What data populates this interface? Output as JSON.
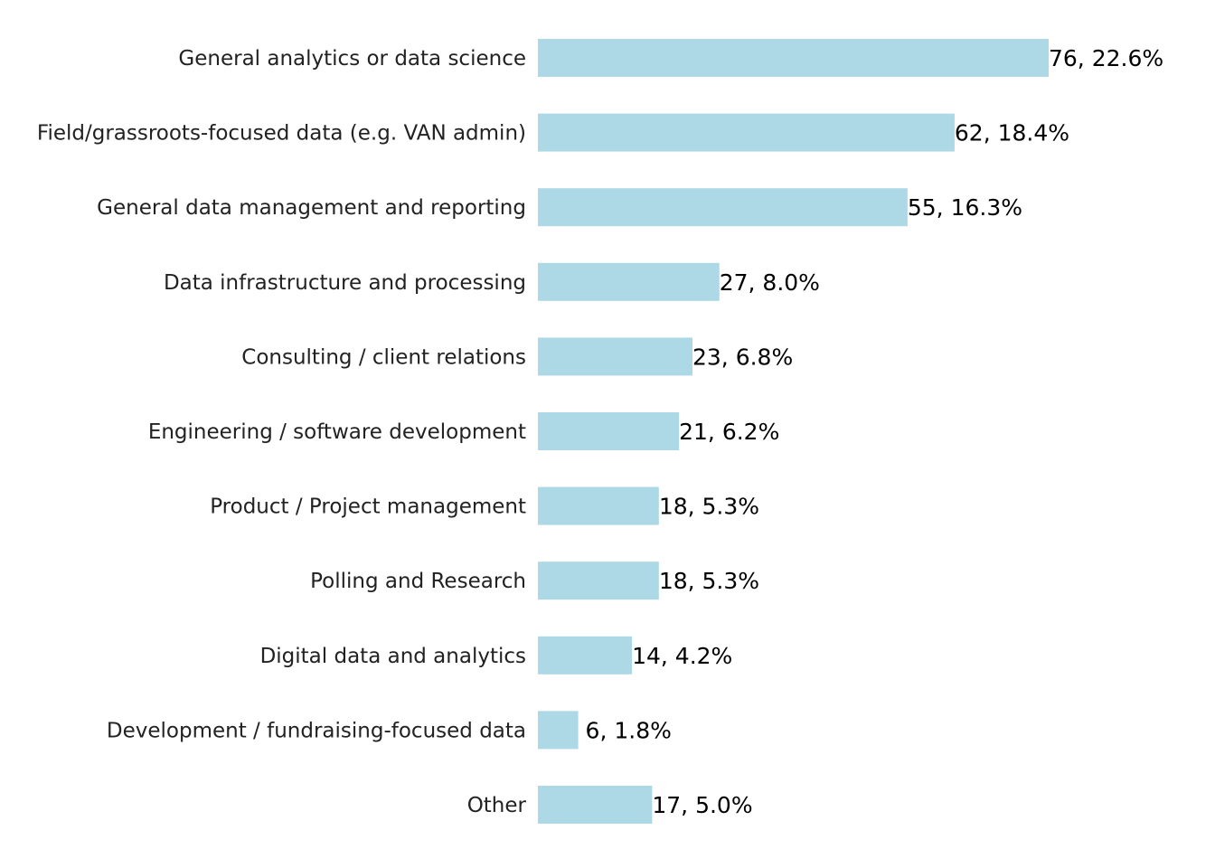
{
  "chart_data": {
    "type": "bar",
    "orientation": "horizontal",
    "categories": [
      "General analytics or data science",
      "Field/grassroots-focused data (e.g. VAN admin)",
      "General data management and reporting",
      "Data infrastructure and processing",
      "Consulting / client relations",
      "Engineering / software development",
      "Product / Project management",
      "Polling and Research",
      "Digital data and analytics",
      "Development / fundraising-focused data",
      "Other"
    ],
    "values": [
      76,
      62,
      55,
      27,
      23,
      21,
      18,
      18,
      14,
      6,
      17
    ],
    "data_labels": [
      "76, 22.6%",
      "62, 18.4%",
      "55, 16.3%",
      "27, 8.0%",
      "23, 6.8%",
      "21, 6.2%",
      "18, 5.3%",
      "18, 5.3%",
      "14, 4.2%",
      " 6, 1.8%",
      "17, 5.0%"
    ],
    "bar_color": "#add8e6",
    "xlim": [
      0,
      76
    ],
    "axes_visible": false,
    "grid": false
  }
}
